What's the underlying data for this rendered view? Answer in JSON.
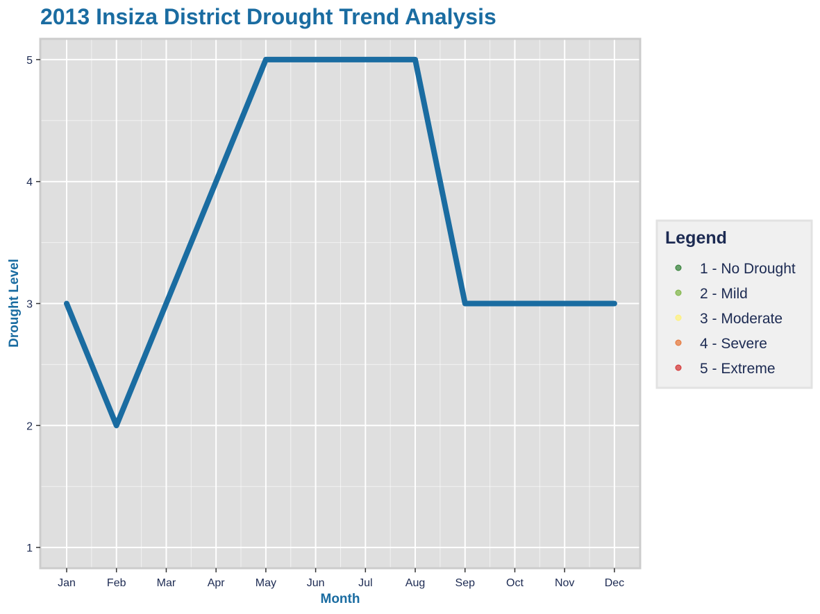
{
  "chart_data": {
    "type": "line",
    "title": "2013 Insiza District Drought Trend Analysis",
    "xlabel": "Month",
    "ylabel": "Drought Level",
    "categories": [
      "Jan",
      "Feb",
      "Mar",
      "Apr",
      "May",
      "Jun",
      "Jul",
      "Aug",
      "Sep",
      "Oct",
      "Nov",
      "Dec"
    ],
    "series": [
      {
        "values": [
          3,
          2,
          3,
          4,
          5,
          5,
          5,
          5,
          3,
          3,
          3,
          3
        ]
      }
    ],
    "ylim": [
      0.83,
      5.17
    ],
    "y_ticks": [
      1,
      2,
      3,
      4,
      5
    ],
    "grid": true,
    "legend": {
      "title": "Legend",
      "placement": "right",
      "items": [
        {
          "label": "1 - No Drought",
          "color": "#2e7d32"
        },
        {
          "label": "2 - Mild",
          "color": "#7cb342"
        },
        {
          "label": "3 - Moderate",
          "color": "#fff176"
        },
        {
          "label": "4 - Severe",
          "color": "#e57334"
        },
        {
          "label": "5 - Extreme",
          "color": "#d32f2f"
        }
      ]
    }
  },
  "colors": {
    "line": "#1a6ca1",
    "title": "#1a6ca1",
    "axis_title": "#1a6ca1",
    "legend_text": "#1c2a52",
    "panel_background": "#dfdfdf",
    "panel_border": "#cccccc",
    "grid": "#ffffff",
    "tick_text": "#1c2a52",
    "legend_background": "#f0f0f0"
  }
}
